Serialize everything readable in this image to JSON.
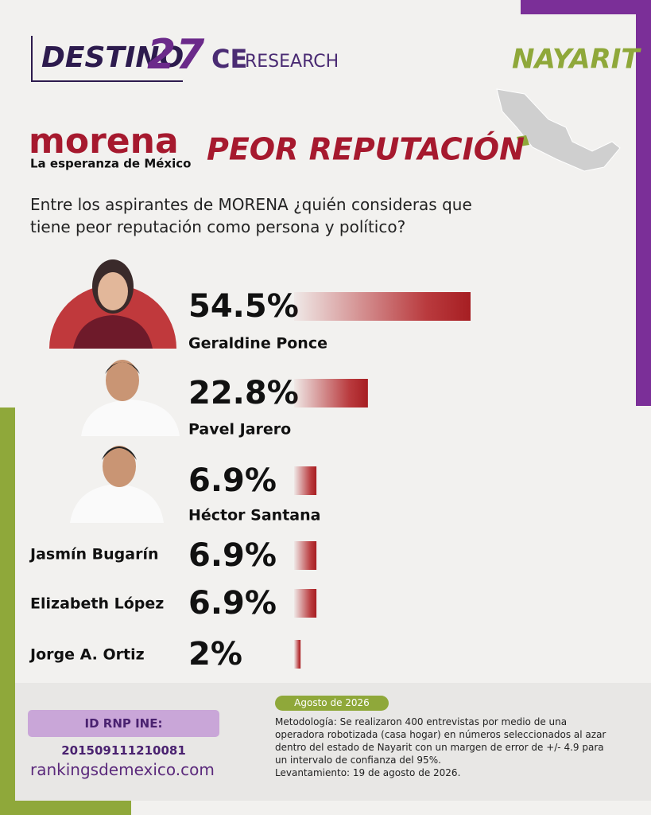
{
  "header": {
    "brand": "DESTINO",
    "brand_number": "27",
    "partner_prefix": "CE",
    "partner": "RESEARCH",
    "state": "NAYARIT",
    "party": "morena",
    "party_tagline": "La esperanza de México"
  },
  "chart_data": {
    "type": "bar",
    "title": "PEOR REPUTACIÓN",
    "subtitle": "Entre los aspirantes de MORENA ¿quién consideras que tiene peor reputación como persona y político?",
    "categories": [
      "Geraldine Ponce",
      "Pavel Jarero",
      "Héctor Santana",
      "Jasmín Bugarín",
      "Elizabeth López",
      "Jorge A. Ortiz"
    ],
    "values": [
      54.5,
      22.8,
      6.9,
      6.9,
      6.9,
      2
    ],
    "value_labels": [
      "54.5%",
      "22.8%",
      "6.9%",
      "6.9%",
      "6.9%",
      "2%"
    ],
    "color": "#b3262a"
  },
  "footer": {
    "date": "Agosto de 2026",
    "methodology": "Metodología: Se realizaron 400 entrevistas por medio de una operadora robotizada (casa hogar) en números seleccionados al azar dentro del estado de Nayarit con un margen de error de +/- 4.9 para un intervalo de confianza del 95%.",
    "fieldwork": "Levantamiento: 19 de agosto de 2026.",
    "registry": "ID RNP INE: 201509111210081",
    "website": "rankingsdemexico.com"
  }
}
